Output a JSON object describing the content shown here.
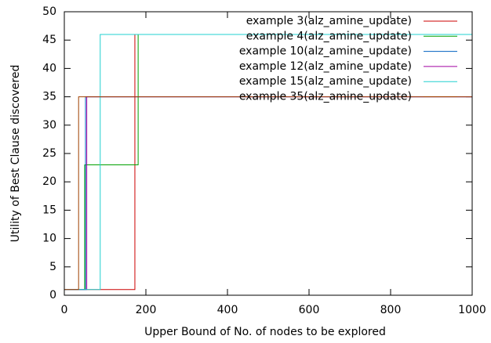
{
  "chart_data": {
    "type": "step",
    "x_label": "Upper Bound of No. of nodes to be explored",
    "y_label": "Utility of Best Clause discovered",
    "xlim": [
      0,
      1000
    ],
    "xticks": [
      0,
      200,
      400,
      600,
      800,
      1000
    ],
    "ylim": [
      0,
      50
    ],
    "yticks": [
      0,
      5,
      10,
      15,
      20,
      25,
      30,
      35,
      40,
      45,
      50
    ],
    "legend": "top-right",
    "series": [
      {
        "name": "example 3(alz_amine_update)",
        "color": "#cc0000",
        "x": [
          0,
          173,
          1000
        ],
        "values": [
          1,
          46,
          46
        ]
      },
      {
        "name": "example 4(alz_amine_update)",
        "color": "#00a000",
        "x": [
          0,
          50,
          181,
          1000
        ],
        "values": [
          1,
          23,
          46,
          46
        ]
      },
      {
        "name": "example 10(alz_amine_update)",
        "color": "#0060c0",
        "x": [
          0,
          52,
          1000
        ],
        "values": [
          1,
          35,
          35
        ]
      },
      {
        "name": "example 12(alz_amine_update)",
        "color": "#a000a0",
        "x": [
          0,
          55,
          1000
        ],
        "values": [
          1,
          35,
          35
        ]
      },
      {
        "name": "example 15(alz_amine_update)",
        "color": "#20d0d0",
        "x": [
          0,
          88,
          1000
        ],
        "values": [
          1,
          46,
          46
        ]
      },
      {
        "name": "example 35(alz_amine_update)",
        "color": "#a04000",
        "x": [
          0,
          35,
          1000
        ],
        "values": [
          1,
          35,
          35
        ]
      }
    ]
  }
}
